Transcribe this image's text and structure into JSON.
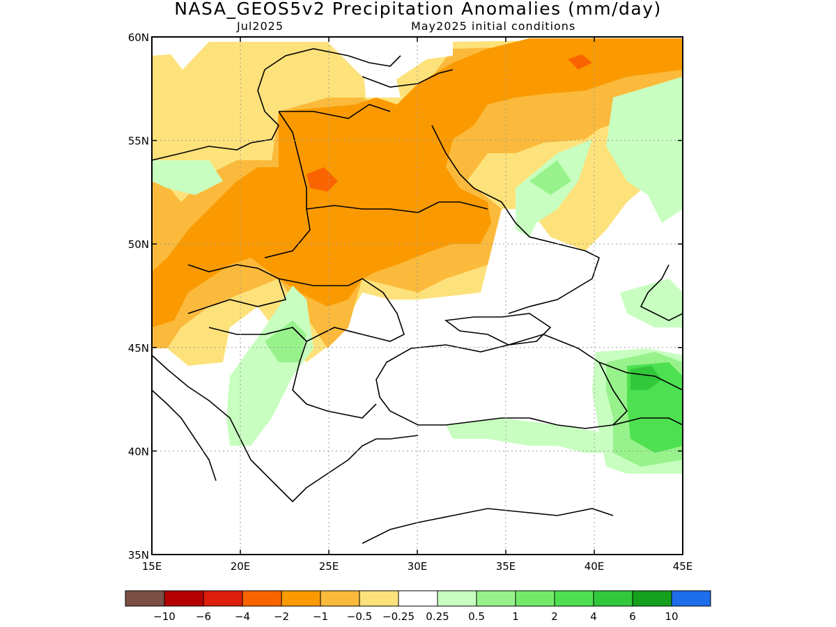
{
  "title": "NASA_GEOS5v2 Precipitation Anomalies (mm/day)",
  "subtitle_left": "Jul2025",
  "subtitle_right": "May2025 initial conditions",
  "map": {
    "lon_range": [
      15,
      45
    ],
    "lat_range": [
      35,
      60
    ],
    "lon_ticks": [
      "15E",
      "20E",
      "25E",
      "30E",
      "35E",
      "40E",
      "45E"
    ],
    "lat_ticks": [
      "35N",
      "40N",
      "45N",
      "50N",
      "55N",
      "60N"
    ],
    "lon_tick_values": [
      15,
      20,
      25,
      30,
      35,
      40,
      45
    ],
    "lat_tick_values": [
      35,
      40,
      45,
      50,
      55,
      60
    ],
    "gridlines": true
  },
  "colorbar": {
    "colors": [
      "#7a4f44",
      "#b40000",
      "#dc1e0a",
      "#fa6400",
      "#fa9a00",
      "#fbba3c",
      "#fde27b",
      "#ffffff",
      "#c8ffc0",
      "#97f28c",
      "#73ea6a",
      "#4ee050",
      "#32c83c",
      "#14a01c",
      "#1e6eeb"
    ],
    "labels": [
      "−10",
      "−6",
      "−4",
      "−2",
      "−1",
      "−0.5",
      "−0.25",
      "0.25",
      "0.5",
      "1",
      "2",
      "4",
      "6",
      "10"
    ]
  }
}
